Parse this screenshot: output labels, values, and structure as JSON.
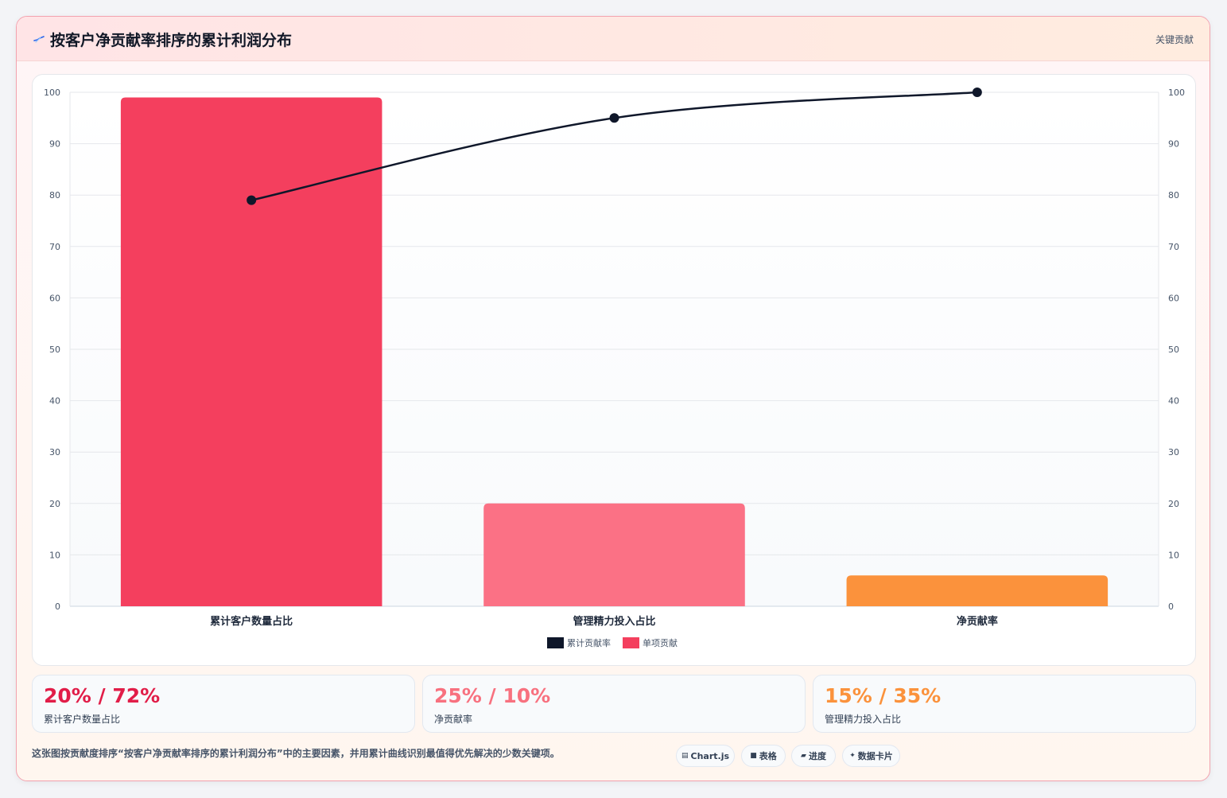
{
  "header": {
    "title": "按客户净贡献率排序的累计利润分布",
    "badge": "关键贡献"
  },
  "chart_data": {
    "type": "bar",
    "categories": [
      "累计客户数量占比",
      "管理精力投入占比",
      "净贡献率"
    ],
    "series": [
      {
        "name": "累计贡献率",
        "type": "line",
        "axis": "right",
        "color": "#0f172a",
        "values": [
          79,
          95,
          100
        ]
      },
      {
        "name": "单项贡献",
        "type": "bar",
        "axis": "left",
        "colors": [
          "#f43f5e",
          "#fb7185",
          "#fb923c"
        ],
        "values": [
          99,
          20,
          6
        ]
      }
    ],
    "ylim": [
      0,
      100
    ],
    "y2lim": [
      0,
      100
    ],
    "yticks": [
      0,
      10,
      20,
      30,
      40,
      50,
      60,
      70,
      80,
      90,
      100
    ],
    "grid": true,
    "legend_position": "bottom"
  },
  "stats": [
    {
      "value": "20% / 72%",
      "label": "累计客户数量占比",
      "color": "#e11d48"
    },
    {
      "value": "25% / 10%",
      "label": "净贡献率",
      "color": "#f8717f"
    },
    {
      "value": "15% / 35%",
      "label": "管理精力投入占比",
      "color": "#fb923c"
    }
  ],
  "footer": {
    "description": "这张图按贡献度排序“按客户净贡献率排序的累计利润分布”中的主要因素，并用累计曲线识别最值得优先解决的少数关键项。",
    "pills": [
      {
        "icon": "chart-icon",
        "label": "Chart.js"
      },
      {
        "icon": "table-icon",
        "label": "表格"
      },
      {
        "icon": "progress-icon",
        "label": "进度"
      },
      {
        "icon": "card-icon",
        "label": "数据卡片"
      }
    ]
  }
}
